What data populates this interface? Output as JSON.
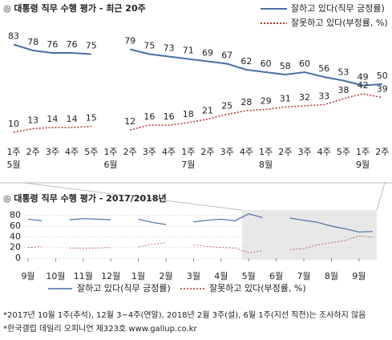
{
  "chart_data": [
    {
      "type": "line",
      "title": "◎ 대통령 직무 수행 평가 - 최근 20주",
      "categories": [
        "1주",
        "2주",
        "3주",
        "4주",
        "5주",
        "1주",
        "2주",
        "3주",
        "4주",
        "1주",
        "2주",
        "3주",
        "4주",
        "1주",
        "2주",
        "3주",
        "4주",
        "5주",
        "1주",
        "2주"
      ],
      "month_labels": [
        "5월",
        null,
        null,
        null,
        null,
        "6월",
        null,
        null,
        null,
        "7월",
        null,
        null,
        null,
        "8월",
        null,
        null,
        null,
        null,
        "9월",
        null
      ],
      "series": [
        {
          "name": "잘하고 있다(직무 긍정률)",
          "color": "#4a6fa5",
          "style": "solid",
          "values": [
            83,
            78,
            76,
            76,
            75,
            null,
            79,
            75,
            73,
            71,
            69,
            67,
            62,
            60,
            58,
            60,
            56,
            53,
            49,
            50
          ]
        },
        {
          "name": "잘못하고 있다(부정률, %)",
          "color": "#a8352e",
          "style": "dotted",
          "values": [
            10,
            13,
            14,
            14,
            15,
            null,
            12,
            16,
            16,
            18,
            21,
            25,
            28,
            29,
            31,
            32,
            33,
            38,
            42,
            39
          ]
        }
      ]
    },
    {
      "type": "line",
      "title": "◎ 대통령 직무 수행 평가 - 2017/2018년",
      "categories": [
        "9월",
        null,
        "10월",
        null,
        "11월",
        null,
        "12월",
        null,
        "1월",
        null,
        "2월",
        null,
        "3월",
        null,
        "4월",
        null,
        "5월",
        null,
        "6월",
        null,
        "7월",
        null,
        "8월",
        null,
        "9월",
        null
      ],
      "ylim": [
        0,
        90
      ],
      "yticks": [
        0,
        20,
        40,
        60,
        80
      ],
      "grid": true,
      "series": [
        {
          "name": "잘하고 있다(직무 긍정률)",
          "color": "#4a6fa5",
          "style": "solid",
          "values": [
            73,
            70,
            null,
            72,
            74,
            73,
            72,
            null,
            73,
            67,
            63,
            null,
            68,
            71,
            73,
            70,
            83,
            76,
            null,
            75,
            71,
            67,
            60,
            55,
            49,
            50
          ]
        },
        {
          "name": "잘못하고 있다(부정률, %)",
          "color": "#a8352e",
          "style": "dotted",
          "values": [
            20,
            22,
            null,
            19,
            18,
            19,
            20,
            null,
            21,
            26,
            29,
            null,
            25,
            22,
            20,
            19,
            10,
            14,
            null,
            16,
            18,
            25,
            29,
            33,
            42,
            39
          ]
        }
      ]
    }
  ],
  "notes": [
    "*2017년 10월 1주(추석), 12월 3~4주(연말), 2018년 2월 3주(설), 6월 1주(지선 직전)는 조사하지 않음",
    "*한국갤럽 데일리 오피니언 제323호 www.gallup.co.kr"
  ]
}
